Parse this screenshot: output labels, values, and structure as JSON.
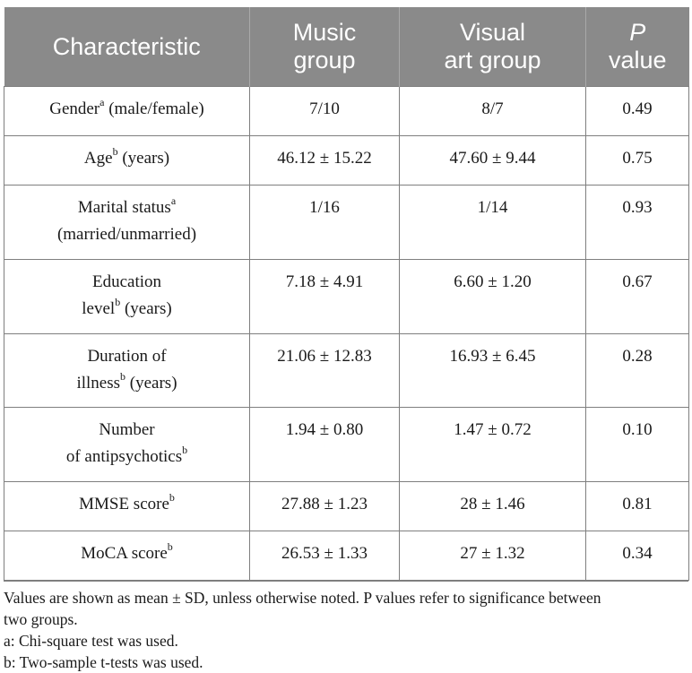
{
  "table": {
    "headers": [
      {
        "line1": "Characteristic",
        "line2": ""
      },
      {
        "line1": "Music",
        "line2": "group"
      },
      {
        "line1": "Visual",
        "line2": "art group"
      },
      {
        "line1": "P",
        "line2": "value"
      }
    ],
    "rows": [
      {
        "label1": "Gender",
        "sup1": "a",
        "tail1": " (male/female)",
        "label2": "",
        "sup2": "",
        "tail2": "",
        "music": "7/10",
        "visual": "8/7",
        "p": "0.49"
      },
      {
        "label1": "Age",
        "sup1": "b",
        "tail1": " (years)",
        "label2": "",
        "sup2": "",
        "tail2": "",
        "music": "46.12 ± 15.22",
        "visual": "47.60 ± 9.44",
        "p": "0.75"
      },
      {
        "label1": "Marital status",
        "sup1": "a",
        "tail1": "",
        "label2": "(married/unmarried)",
        "sup2": "",
        "tail2": "",
        "music": "1/16",
        "visual": "1/14",
        "p": "0.93"
      },
      {
        "label1": "Education",
        "sup1": "",
        "tail1": "",
        "label2": "level",
        "sup2": "b",
        "tail2": " (years)",
        "music": "7.18 ± 4.91",
        "visual": "6.60 ± 1.20",
        "p": "0.67"
      },
      {
        "label1": "Duration of",
        "sup1": "",
        "tail1": "",
        "label2": "illness",
        "sup2": "b",
        "tail2": " (years)",
        "music": "21.06 ± 12.83",
        "visual": "16.93 ± 6.45",
        "p": "0.28"
      },
      {
        "label1": "Number",
        "sup1": "",
        "tail1": "",
        "label2": "of antipsychotics",
        "sup2": "b",
        "tail2": "",
        "music": "1.94 ± 0.80",
        "visual": "1.47 ± 0.72",
        "p": "0.10"
      },
      {
        "label1": "MMSE score",
        "sup1": "b",
        "tail1": "",
        "label2": "",
        "sup2": "",
        "tail2": "",
        "music": "27.88 ± 1.23",
        "visual": "28 ± 1.46",
        "p": "0.81"
      },
      {
        "label1": "MoCA score",
        "sup1": "b",
        "tail1": "",
        "label2": "",
        "sup2": "",
        "tail2": "",
        "music": "26.53 ± 1.33",
        "visual": "27 ± 1.32",
        "p": "0.34"
      }
    ]
  },
  "notes": {
    "line1": "Values are shown as mean ± SD, unless otherwise noted. P values refer to significance between",
    "line2": "two groups.",
    "line3": "a: Chi-square test was used.",
    "line4": "b: Two-sample t-tests was used."
  },
  "colors": {
    "header_bg": "#8a8a8a",
    "header_text": "#ffffff",
    "border": "#7f7f7f"
  }
}
